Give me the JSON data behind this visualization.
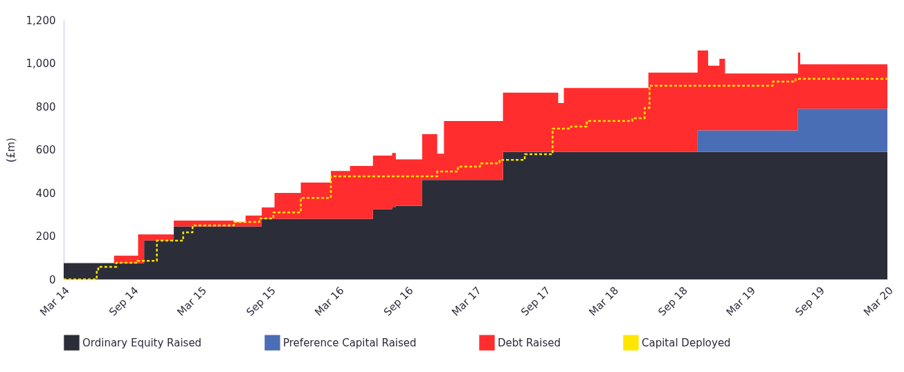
{
  "chart_data": {
    "type": "area",
    "ylabel": "(£m)",
    "stacked": true,
    "legend": "bottom",
    "xlim": [
      "2014-03-01",
      "2020-03-01"
    ],
    "ylim": [
      0,
      1200
    ],
    "yticks": [
      {
        "value": 0,
        "label": "0"
      },
      {
        "value": 200,
        "label": "200"
      },
      {
        "value": 400,
        "label": "400"
      },
      {
        "value": 600,
        "label": "600"
      },
      {
        "value": 800,
        "label": "800"
      },
      {
        "value": 1000,
        "label": "1,000"
      },
      {
        "value": 1200,
        "label": "1,200"
      }
    ],
    "xticks": [
      {
        "value": "2014-03-01",
        "label": "Mar 14"
      },
      {
        "value": "2014-09-01",
        "label": "Sep 14"
      },
      {
        "value": "2015-03-01",
        "label": "Mar 15"
      },
      {
        "value": "2015-09-01",
        "label": "Sep 15"
      },
      {
        "value": "2016-03-01",
        "label": "Mar 16"
      },
      {
        "value": "2016-09-01",
        "label": "Sep 16"
      },
      {
        "value": "2017-03-01",
        "label": "Mar 17"
      },
      {
        "value": "2017-09-01",
        "label": "Sep 17"
      },
      {
        "value": "2018-03-01",
        "label": "Mar 18"
      },
      {
        "value": "2018-09-01",
        "label": "Sep 18"
      },
      {
        "value": "2019-03-01",
        "label": "Mar 19"
      },
      {
        "value": "2019-09-01",
        "label": "Sep 19"
      },
      {
        "value": "2020-03-01",
        "label": "Mar 20"
      }
    ],
    "x": [
      "2014-03-01",
      "2014-07-13",
      "2014-09-15",
      "2014-10-01",
      "2014-12-19",
      "2015-05-28",
      "2015-06-28",
      "2015-08-10",
      "2015-09-13",
      "2015-11-22",
      "2016-02-10",
      "2016-04-01",
      "2016-06-01",
      "2016-07-22",
      "2016-08-01",
      "2016-10-10",
      "2016-11-19",
      "2016-12-07",
      "2017-05-13",
      "2017-10-07",
      "2017-10-22",
      "2018-06-04",
      "2018-10-13",
      "2018-11-10",
      "2018-12-10",
      "2018-12-25",
      "2019-07-07",
      "2019-07-13",
      "2020-03-01"
    ],
    "series": [
      {
        "name": "Ordinary Equity Raised",
        "color": "#2b2d38",
        "values": [
          75,
          75,
          75,
          180,
          245,
          245,
          245,
          280,
          280,
          280,
          280,
          280,
          325,
          335,
          340,
          460,
          460,
          460,
          590,
          590,
          590,
          590,
          590,
          590,
          590,
          590,
          590,
          590,
          590
        ]
      },
      {
        "name": "Preference Capital Raised",
        "color": "#4a6eb5",
        "values": [
          0,
          0,
          0,
          0,
          0,
          0,
          0,
          0,
          0,
          0,
          0,
          0,
          0,
          0,
          0,
          0,
          0,
          0,
          0,
          0,
          0,
          0,
          100,
          100,
          100,
          100,
          200,
          200,
          200
        ]
      },
      {
        "name": "Debt Raised",
        "color": "#ff2d2d",
        "values": [
          0,
          35,
          133,
          28,
          27,
          20,
          50,
          53,
          120,
          168,
          222,
          245,
          248,
          250,
          215,
          212,
          122,
          273,
          274,
          226,
          296,
          367,
          369,
          299,
          331,
          263,
          260,
          205,
          205
        ]
      },
      {
        "name": "Capital Deployed",
        "type": "step",
        "color": "#ffe600",
        "line_style": "dashed",
        "x": [
          "2014-03-01",
          "2014-05-28",
          "2014-06-01",
          "2014-07-19",
          "2014-09-13",
          "2014-11-04",
          "2015-01-13",
          "2015-02-07",
          "2015-05-28",
          "2015-08-04",
          "2015-09-10",
          "2015-11-22",
          "2016-02-10",
          "2016-11-19",
          "2017-01-13",
          "2017-03-13",
          "2017-05-04",
          "2017-07-10",
          "2017-09-22",
          "2017-11-10",
          "2017-12-22",
          "2018-04-22",
          "2018-05-25",
          "2018-06-07",
          "2019-04-01",
          "2019-05-01",
          "2019-07-01",
          "2020-03-01"
        ],
        "values": [
          0,
          35,
          58,
          77,
          86,
          179,
          218,
          250,
          266,
          282,
          310,
          377,
          477,
          499,
          522,
          537,
          553,
          579,
          698,
          707,
          733,
          746,
          794,
          896,
          896,
          915,
          928,
          938
        ]
      }
    ]
  }
}
